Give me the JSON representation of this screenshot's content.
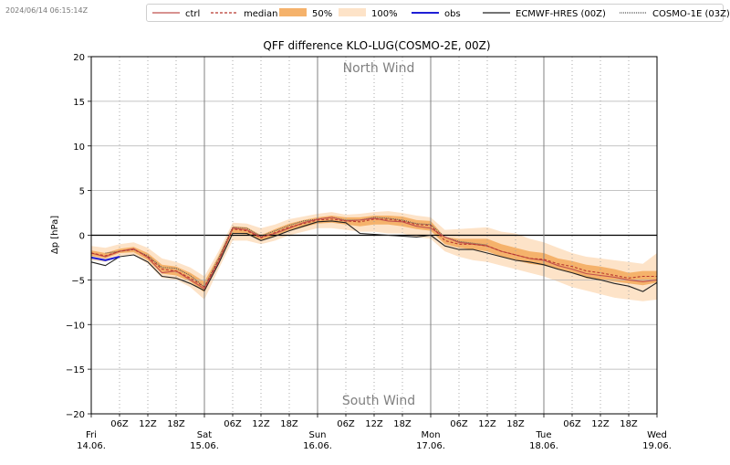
{
  "timestamp": "2024/06/14 06:15:14Z",
  "legend": [
    {
      "label": "ctrl",
      "kind": "line",
      "color": "#c0504d",
      "dash": ""
    },
    {
      "label": "median",
      "kind": "line",
      "color": "#b8382f",
      "dash": "3,2"
    },
    {
      "label": "50%",
      "kind": "patch",
      "color": "#f5b26b"
    },
    {
      "label": "100%",
      "kind": "patch",
      "color": "#fde3c8"
    },
    {
      "label": "obs",
      "kind": "line",
      "color": "#1f1fd6",
      "dash": "",
      "width": 2
    },
    {
      "label": "ECMWF-HRES (00Z)",
      "kind": "line",
      "color": "#222222",
      "dash": ""
    },
    {
      "label": "COSMO-1E (03Z)",
      "kind": "line",
      "color": "#555555",
      "dash": "1,1"
    }
  ],
  "chart_data": {
    "type": "line",
    "title": "QFF difference KLO-LUG(COSMO-2E, 00Z)",
    "ylabel": "Δp [hPa]",
    "xlabel": "",
    "ylim": [
      -20,
      20
    ],
    "xlim_hours": [
      0,
      120
    ],
    "yticks": [
      20,
      15,
      10,
      5,
      0,
      -5,
      -10,
      -15,
      -20
    ],
    "grid": true,
    "annotations": {
      "top": "North Wind",
      "bottom": "South Wind"
    },
    "day_labels": [
      {
        "day": "Fri",
        "date": "14.06."
      },
      {
        "day": "Sat",
        "date": "15.06."
      },
      {
        "day": "Sun",
        "date": "16.06."
      },
      {
        "day": "Mon",
        "date": "17.06."
      },
      {
        "day": "Tue",
        "date": "18.06."
      },
      {
        "day": "Wed",
        "date": "19.06."
      }
    ],
    "hour_labels": [
      "06Z",
      "12Z",
      "18Z"
    ],
    "x_hours": [
      0,
      3,
      6,
      9,
      12,
      15,
      18,
      21,
      24,
      27,
      30,
      33,
      36,
      39,
      42,
      45,
      48,
      51,
      54,
      57,
      60,
      63,
      66,
      69,
      72,
      75,
      78,
      81,
      84,
      87,
      90,
      93,
      96,
      99,
      102,
      105,
      108,
      111,
      114,
      117,
      120
    ],
    "series": [
      {
        "name": "ctrl",
        "values": [
          -2.0,
          -2.4,
          -1.8,
          -1.5,
          -2.5,
          -4.2,
          -4.0,
          -5.0,
          -6.0,
          -3.0,
          0.8,
          0.6,
          -0.2,
          0.2,
          0.8,
          1.4,
          1.8,
          2.0,
          1.6,
          1.7,
          1.9,
          1.6,
          1.5,
          1.0,
          0.8,
          -0.2,
          -0.8,
          -1.0,
          -1.2,
          -1.8,
          -2.2,
          -2.6,
          -2.8,
          -3.4,
          -3.8,
          -4.3,
          -4.5,
          -4.7,
          -5.0,
          -5.2,
          -5.0
        ]
      },
      {
        "name": "median",
        "values": [
          -2.0,
          -2.3,
          -1.8,
          -1.6,
          -2.4,
          -3.8,
          -4.0,
          -4.8,
          -5.8,
          -2.8,
          0.7,
          0.5,
          -0.3,
          0.3,
          0.9,
          1.3,
          1.7,
          1.8,
          1.6,
          1.5,
          1.8,
          1.8,
          1.6,
          1.2,
          1.1,
          -0.6,
          -1.0,
          -1.0,
          -1.2,
          -1.8,
          -2.2,
          -2.6,
          -2.7,
          -3.2,
          -3.5,
          -4.0,
          -4.2,
          -4.5,
          -4.8,
          -4.6,
          -4.6
        ]
      },
      {
        "name": "obs",
        "values": [
          -2.5,
          -2.8,
          -2.4,
          null,
          null,
          null,
          null,
          null,
          null,
          null,
          null,
          null,
          null,
          null,
          null,
          null,
          null,
          null,
          null,
          null,
          null,
          null,
          null,
          null,
          null,
          null,
          null,
          null,
          null,
          null,
          null,
          null,
          null,
          null,
          null,
          null,
          null,
          null,
          null,
          null,
          null
        ]
      },
      {
        "name": "ECMWF-HRES (00Z)",
        "values": [
          -3.0,
          -3.4,
          -2.4,
          -2.2,
          -3.0,
          -4.6,
          -4.8,
          -5.4,
          -6.2,
          -3.2,
          0.2,
          0.2,
          -0.6,
          -0.1,
          0.5,
          1.0,
          1.5,
          1.6,
          1.4,
          0.2,
          0.1,
          0.0,
          -0.1,
          -0.2,
          0.0,
          -1.2,
          -1.6,
          -1.6,
          -2.0,
          -2.4,
          -2.8,
          -3.0,
          -3.3,
          -3.8,
          -4.2,
          -4.7,
          -5.0,
          -5.4,
          -5.7,
          -6.3,
          -5.3
        ]
      },
      {
        "name": "COSMO-1E (03Z)",
        "values": [
          null,
          -2.0,
          -1.8,
          -1.6,
          -2.3,
          -3.6,
          -3.7,
          -4.5,
          -5.8,
          -2.6,
          0.9,
          0.8,
          -0.1,
          0.5,
          1.1,
          1.6,
          1.8,
          2.0,
          1.7,
          1.7,
          2.0,
          1.9,
          1.7,
          1.3,
          1.2,
          -0.2,
          -0.7,
          -0.9,
          -1.1,
          null,
          null,
          null,
          null,
          null,
          null,
          null,
          null,
          null,
          null,
          null,
          null
        ]
      }
    ],
    "bands": [
      {
        "name": "100%",
        "lower": [
          -2.8,
          -3.0,
          -2.3,
          -2.2,
          -3.2,
          -4.8,
          -5.0,
          -5.8,
          -7.2,
          -3.8,
          -0.6,
          -0.6,
          -1.0,
          -0.6,
          0.0,
          0.4,
          0.8,
          0.8,
          0.6,
          0.4,
          0.4,
          0.2,
          0.2,
          -0.2,
          -0.4,
          -1.8,
          -2.4,
          -2.8,
          -3.0,
          -3.4,
          -3.8,
          -4.2,
          -4.6,
          -5.2,
          -5.8,
          -6.2,
          -6.6,
          -7.0,
          -7.2,
          -7.4,
          -7.2
        ],
        "upper": [
          -1.2,
          -1.4,
          -1.0,
          -0.8,
          -1.4,
          -2.6,
          -3.0,
          -3.6,
          -4.6,
          -1.8,
          1.4,
          1.3,
          0.8,
          1.2,
          1.8,
          2.1,
          2.4,
          2.6,
          2.3,
          2.4,
          2.6,
          2.7,
          2.5,
          2.2,
          2.0,
          0.6,
          0.7,
          0.8,
          0.9,
          0.4,
          0.2,
          -0.4,
          -0.8,
          -1.4,
          -2.0,
          -2.4,
          -2.6,
          -2.8,
          -3.0,
          -3.2,
          -2.0
        ]
      },
      {
        "name": "50%",
        "lower": [
          -2.3,
          -2.6,
          -2.0,
          -1.9,
          -2.8,
          -4.3,
          -4.5,
          -5.2,
          -6.4,
          -3.2,
          0.2,
          0.1,
          -0.6,
          -0.1,
          0.5,
          0.9,
          1.3,
          1.4,
          1.2,
          1.0,
          1.2,
          1.2,
          1.0,
          0.7,
          0.5,
          -1.0,
          -1.4,
          -1.6,
          -1.8,
          -2.4,
          -2.8,
          -3.2,
          -3.4,
          -3.8,
          -4.2,
          -4.8,
          -5.0,
          -5.2,
          -5.4,
          -5.6,
          -5.3
        ],
        "upper": [
          -1.7,
          -2.0,
          -1.5,
          -1.3,
          -2.0,
          -3.3,
          -3.5,
          -4.2,
          -5.2,
          -2.3,
          1.0,
          0.9,
          0.0,
          0.7,
          1.3,
          1.7,
          2.0,
          2.2,
          2.0,
          2.0,
          2.2,
          2.2,
          2.1,
          1.7,
          1.6,
          -0.2,
          -0.4,
          -0.4,
          -0.4,
          -1.0,
          -1.4,
          -1.8,
          -2.0,
          -2.6,
          -2.9,
          -3.3,
          -3.5,
          -3.8,
          -4.2,
          -4.0,
          -4.0
        ]
      }
    ]
  }
}
